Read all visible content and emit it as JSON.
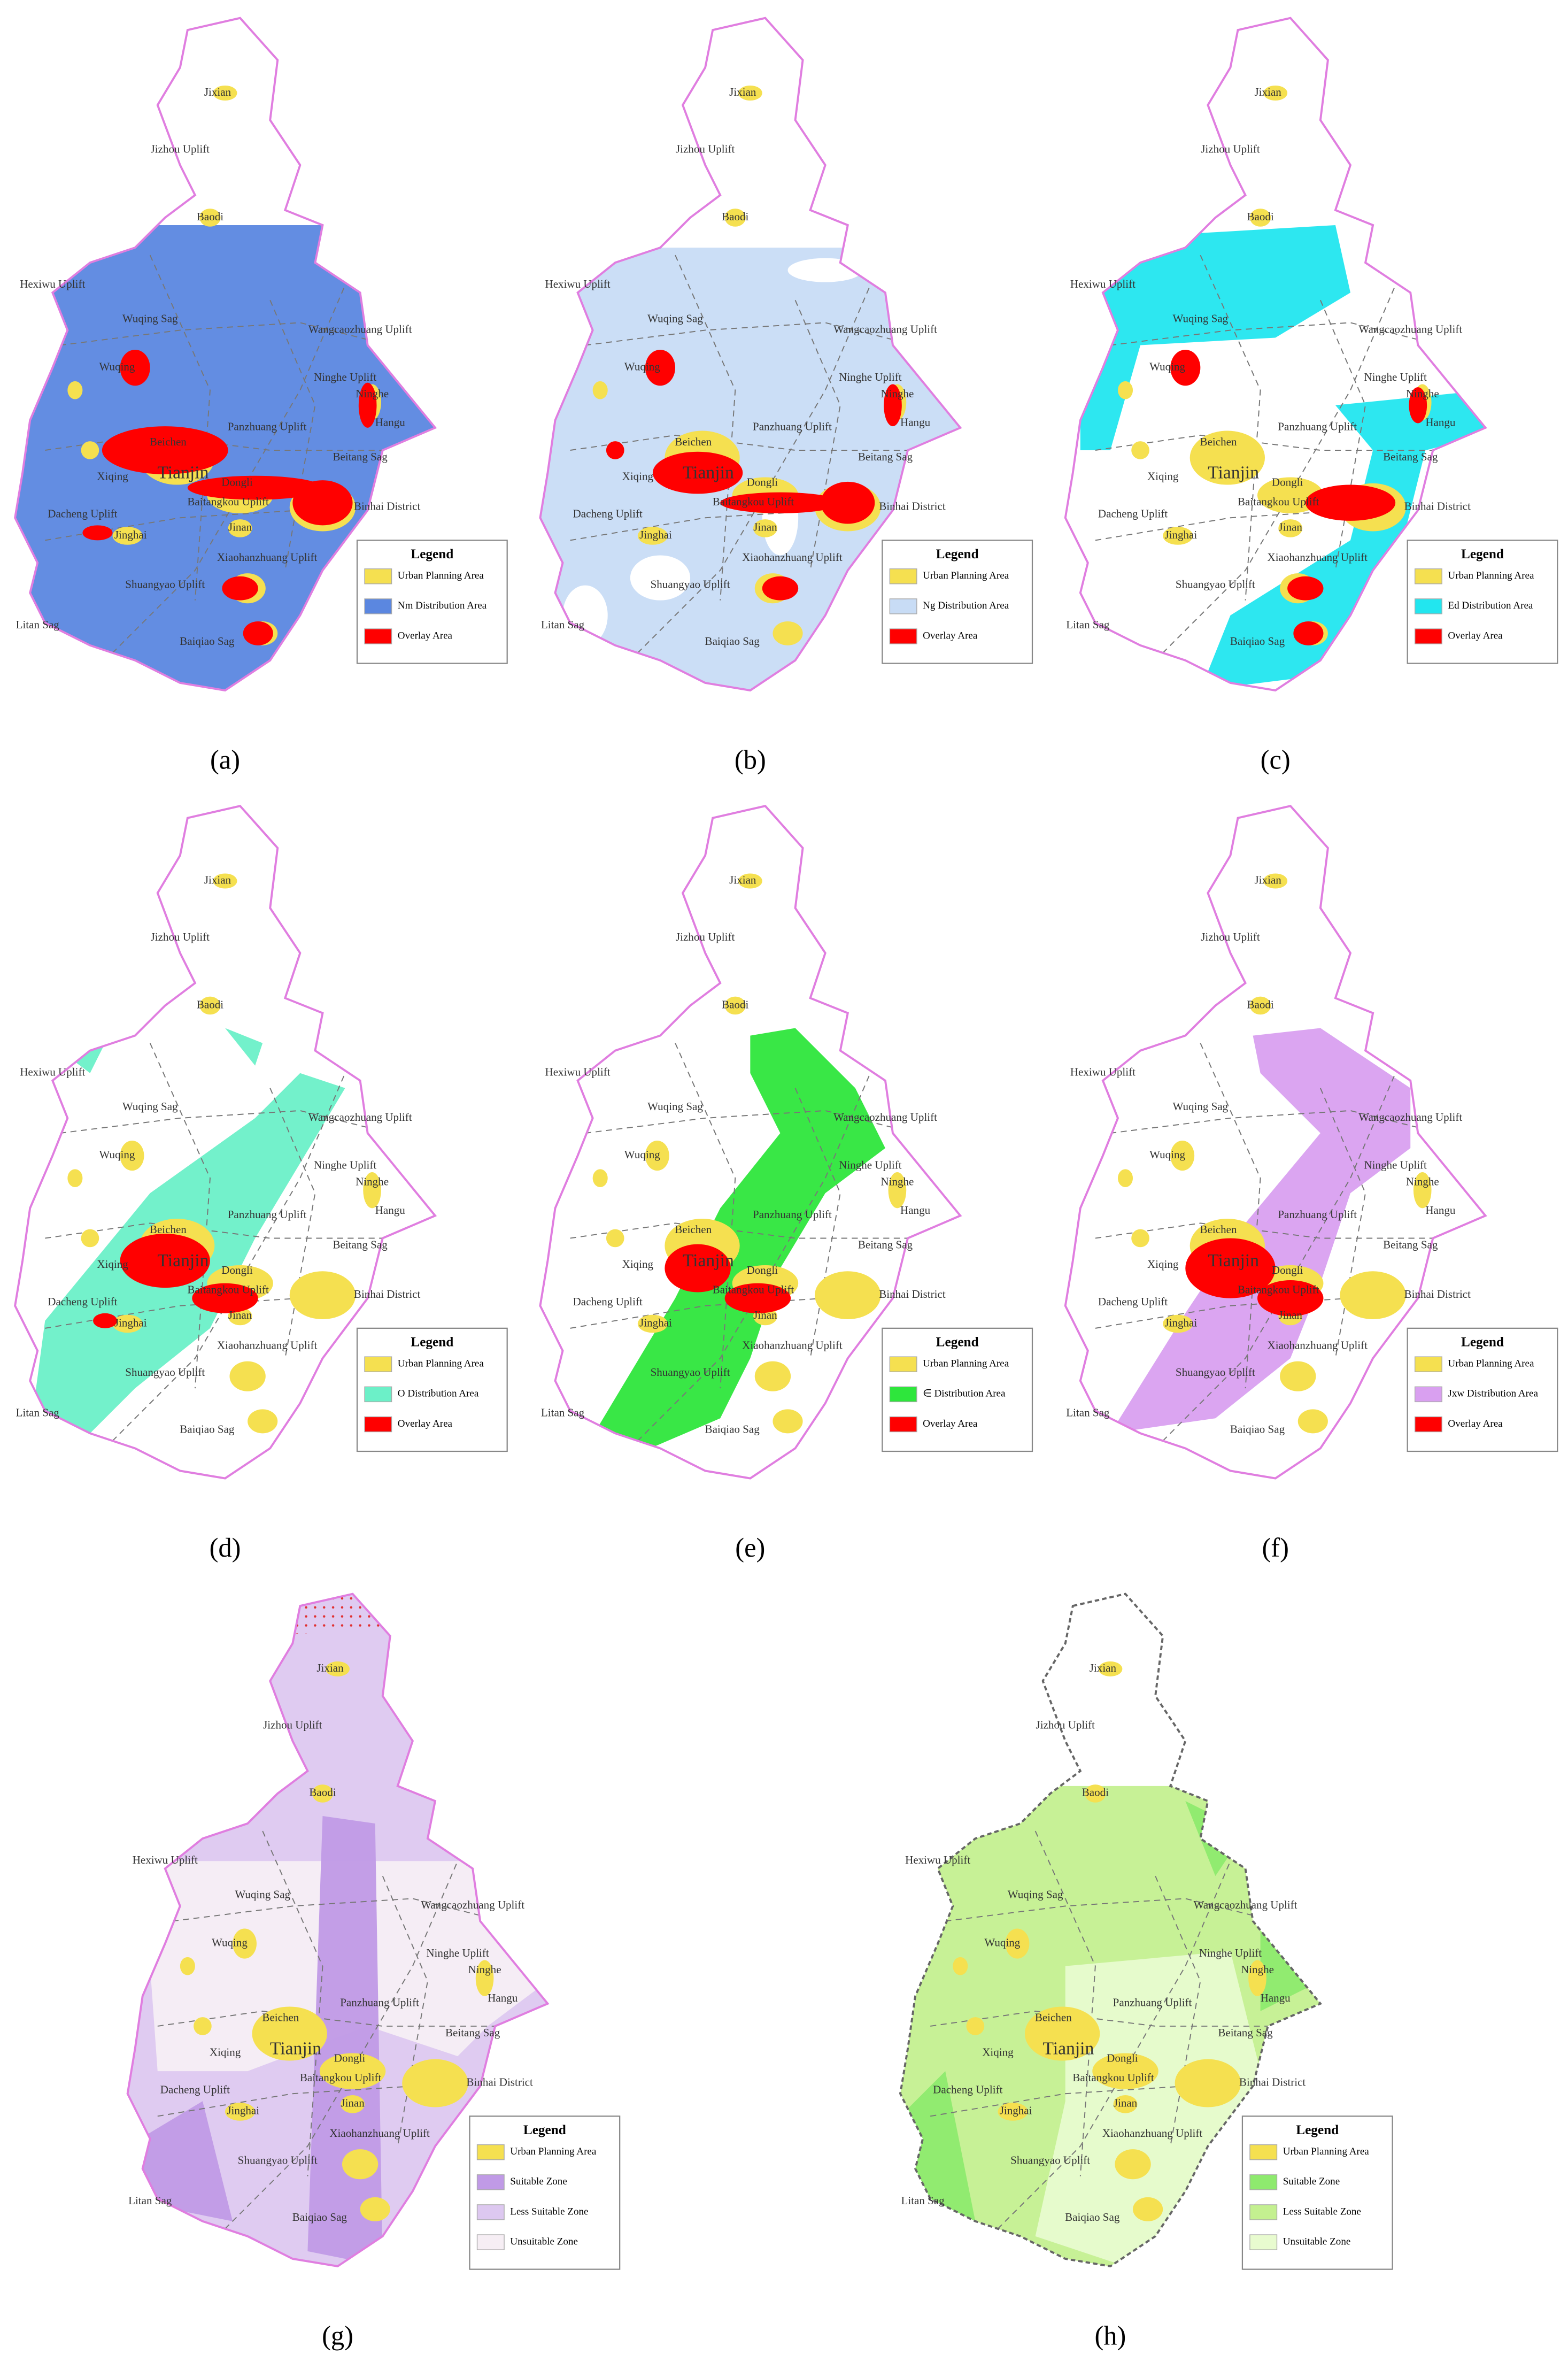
{
  "legend_title": "Legend",
  "place_labels": [
    "Jixian",
    "Jizhou Uplift",
    "Baodi",
    "Hexiwu Uplift",
    "Wuqing Sag",
    "Wangcaozhuang Uplift",
    "Wuqing",
    "Ninghe Uplift",
    "Ninghe",
    "Hangu",
    "Panzhuang Uplift",
    "Beitang Sag",
    "Beichen",
    "Tianjin",
    "Xiqing",
    "Dongli",
    "Baitangkou Uplift",
    "Binhai District",
    "Dacheng Uplift",
    "Jinghai",
    "Jinan",
    "Xiaohanzhuang Uplift",
    "Shuangyao Uplift",
    "Litan Sag",
    "Baiqiao Sag"
  ],
  "panels": [
    {
      "label": "(a)",
      "legend": [
        {
          "text": "Urban Planning Area",
          "color": "#f5e050"
        },
        {
          "text": "Nm Distribution Area",
          "color": "#5b87e0"
        },
        {
          "text": "Overlay Area",
          "color": "#ff0000"
        }
      ]
    },
    {
      "label": "(b)",
      "legend": [
        {
          "text": "Urban Planning Area",
          "color": "#f5e050"
        },
        {
          "text": "Ng Distribution Area",
          "color": "#c8dcf5"
        },
        {
          "text": "Overlay Area",
          "color": "#ff0000"
        }
      ]
    },
    {
      "label": "(c)",
      "legend": [
        {
          "text": "Urban Planning Area",
          "color": "#f5e050"
        },
        {
          "text": "Ed Distribution Area",
          "color": "#22e6ef"
        },
        {
          "text": "Overlay Area",
          "color": "#ff0000"
        }
      ]
    },
    {
      "label": "(d)",
      "legend": [
        {
          "text": "Urban Planning Area",
          "color": "#f5e050"
        },
        {
          "text": "O Distribution Area",
          "color": "#6cf0c8"
        },
        {
          "text": "Overlay Area",
          "color": "#ff0000"
        }
      ]
    },
    {
      "label": "(e)",
      "legend": [
        {
          "text": "Urban Planning Area",
          "color": "#f5e050"
        },
        {
          "text": "∈ Distribution Area",
          "color": "#2ee63c"
        },
        {
          "text": "Overlay Area",
          "color": "#ff0000"
        }
      ]
    },
    {
      "label": "(f)",
      "legend": [
        {
          "text": "Urban Planning Area",
          "color": "#f5e050"
        },
        {
          "text": "Jxw Distribution Area",
          "color": "#d9a0f0"
        },
        {
          "text": "Overlay Area",
          "color": "#ff0000"
        }
      ]
    },
    {
      "label": "(g)",
      "legend": [
        {
          "text": "Urban Planning Area",
          "color": "#f5e050"
        },
        {
          "text": "Suitable Zone",
          "color": "#c09ae6"
        },
        {
          "text": "Less Suitable Zone",
          "color": "#ddc8f0"
        },
        {
          "text": "Unsuitable Zone",
          "color": "#f6eef4"
        }
      ]
    },
    {
      "label": "(h)",
      "legend": [
        {
          "text": "Urban Planning Area",
          "color": "#f5e050"
        },
        {
          "text": "Suitable Zone",
          "color": "#8eea6e"
        },
        {
          "text": "Less Suitable Zone",
          "color": "#c4f090"
        },
        {
          "text": "Unsuitable Zone",
          "color": "#e8fbcf"
        }
      ]
    }
  ]
}
